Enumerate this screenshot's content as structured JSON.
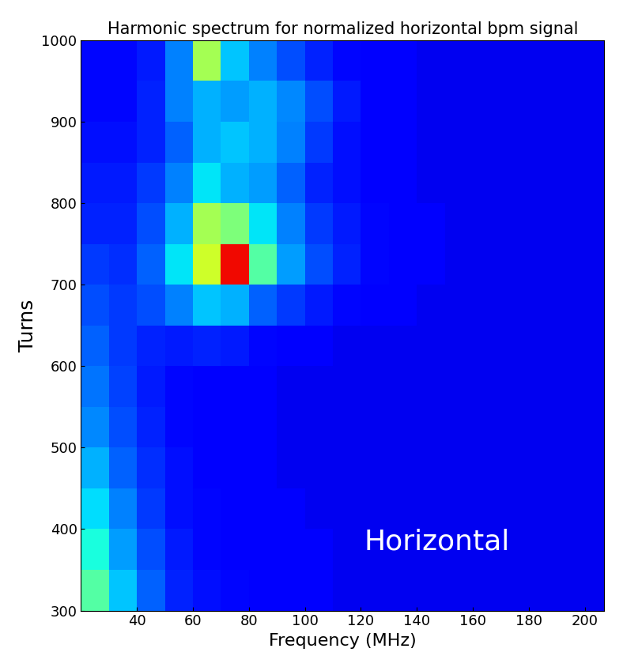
{
  "chart_data": {
    "type": "heatmap",
    "title": "Harmonic spectrum for normalized horizontal bpm signal",
    "x_label": "Frequency (MHz)",
    "y_label": "Turns",
    "annotations": [
      "Horizontal"
    ],
    "x_bins": [
      20,
      30,
      40,
      50,
      60,
      70,
      80,
      90,
      100,
      110,
      120,
      130,
      140,
      150,
      160,
      170,
      180,
      190,
      200,
      210
    ],
    "y_bins": [
      300,
      350,
      400,
      450,
      500,
      550,
      600,
      650,
      700,
      750,
      800,
      850,
      900,
      950,
      1000
    ],
    "cells": [
      [
        0.45,
        0.32,
        0.22,
        0.16,
        0.14,
        0.13,
        0.12,
        0.11,
        0.11,
        0.1,
        0.1,
        0.1,
        0.1,
        0.1,
        0.1,
        0.1,
        0.1,
        0.1,
        0.1
      ],
      [
        0.38,
        0.28,
        0.2,
        0.15,
        0.13,
        0.12,
        0.12,
        0.11,
        0.11,
        0.1,
        0.1,
        0.1,
        0.1,
        0.1,
        0.1,
        0.1,
        0.1,
        0.1,
        0.1
      ],
      [
        0.34,
        0.25,
        0.18,
        0.14,
        0.13,
        0.12,
        0.11,
        0.11,
        0.1,
        0.1,
        0.1,
        0.1,
        0.1,
        0.1,
        0.1,
        0.1,
        0.1,
        0.1,
        0.1
      ],
      [
        0.3,
        0.22,
        0.17,
        0.14,
        0.12,
        0.12,
        0.11,
        0.1,
        0.1,
        0.1,
        0.1,
        0.1,
        0.1,
        0.1,
        0.1,
        0.1,
        0.1,
        0.1,
        0.1
      ],
      [
        0.26,
        0.2,
        0.16,
        0.13,
        0.12,
        0.11,
        0.11,
        0.1,
        0.1,
        0.1,
        0.1,
        0.1,
        0.1,
        0.1,
        0.1,
        0.1,
        0.1,
        0.1,
        0.1
      ],
      [
        0.24,
        0.19,
        0.15,
        0.13,
        0.12,
        0.11,
        0.11,
        0.1,
        0.1,
        0.1,
        0.1,
        0.1,
        0.1,
        0.1,
        0.1,
        0.1,
        0.1,
        0.1,
        0.1
      ],
      [
        0.22,
        0.18,
        0.16,
        0.15,
        0.16,
        0.15,
        0.13,
        0.12,
        0.11,
        0.1,
        0.1,
        0.1,
        0.1,
        0.1,
        0.1,
        0.1,
        0.1,
        0.1,
        0.1
      ],
      [
        0.2,
        0.18,
        0.2,
        0.25,
        0.32,
        0.3,
        0.22,
        0.18,
        0.15,
        0.13,
        0.12,
        0.11,
        0.1,
        0.1,
        0.1,
        0.1,
        0.1,
        0.1,
        0.1
      ],
      [
        0.18,
        0.17,
        0.22,
        0.35,
        0.6,
        0.9,
        0.45,
        0.28,
        0.2,
        0.16,
        0.13,
        0.12,
        0.11,
        0.1,
        0.1,
        0.1,
        0.1,
        0.1,
        0.1
      ],
      [
        0.16,
        0.16,
        0.2,
        0.3,
        0.55,
        0.5,
        0.35,
        0.25,
        0.18,
        0.15,
        0.13,
        0.12,
        0.11,
        0.1,
        0.1,
        0.1,
        0.1,
        0.1,
        0.1
      ],
      [
        0.15,
        0.15,
        0.18,
        0.25,
        0.35,
        0.3,
        0.28,
        0.22,
        0.16,
        0.14,
        0.12,
        0.11,
        0.1,
        0.1,
        0.1,
        0.1,
        0.1,
        0.1,
        0.1
      ],
      [
        0.14,
        0.14,
        0.16,
        0.22,
        0.3,
        0.32,
        0.3,
        0.25,
        0.18,
        0.14,
        0.12,
        0.11,
        0.1,
        0.1,
        0.1,
        0.1,
        0.1,
        0.1,
        0.1
      ],
      [
        0.13,
        0.13,
        0.16,
        0.25,
        0.3,
        0.28,
        0.3,
        0.26,
        0.2,
        0.15,
        0.12,
        0.11,
        0.1,
        0.1,
        0.1,
        0.1,
        0.1,
        0.1,
        0.1
      ],
      [
        0.13,
        0.13,
        0.15,
        0.25,
        0.55,
        0.32,
        0.25,
        0.2,
        0.16,
        0.13,
        0.12,
        0.11,
        0.1,
        0.1,
        0.1,
        0.1,
        0.1,
        0.1,
        0.1
      ]
    ],
    "color_range": [
      0,
      1
    ],
    "xlim": [
      20,
      207
    ],
    "ylim": [
      300,
      1000
    ],
    "xticks": [
      40,
      60,
      80,
      100,
      120,
      140,
      160,
      180,
      200
    ],
    "yticks": [
      300,
      400,
      500,
      600,
      700,
      800,
      900,
      1000
    ]
  }
}
